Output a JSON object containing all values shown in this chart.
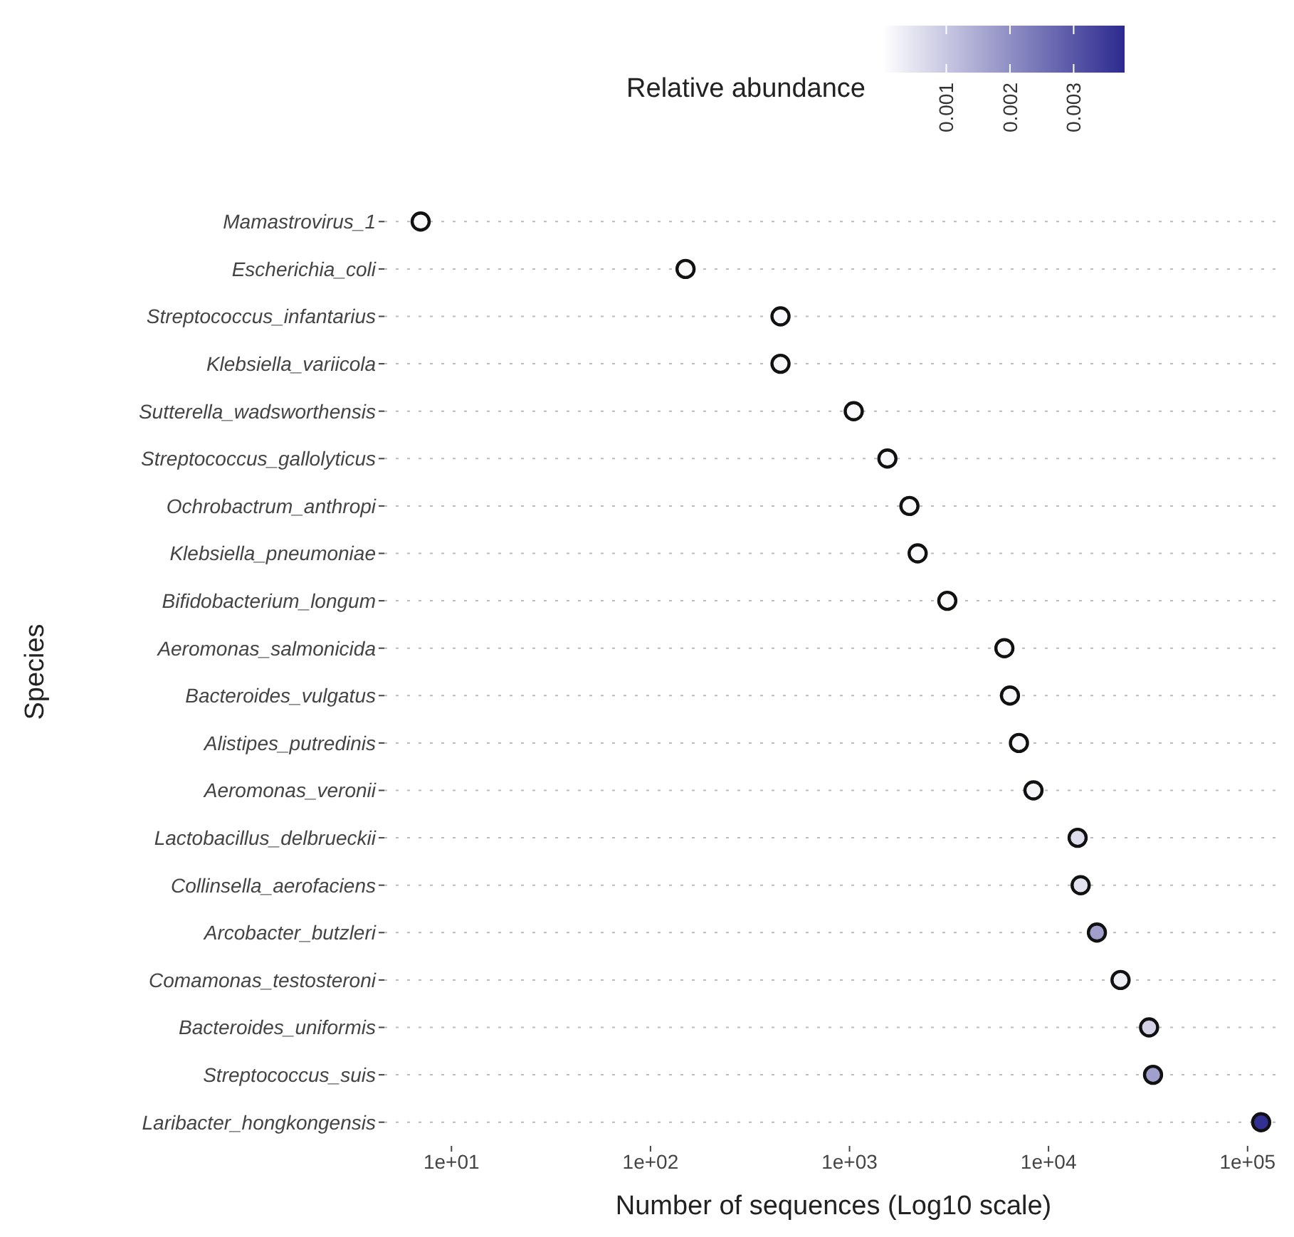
{
  "chart_data": {
    "type": "scatter",
    "xlabel": "Number of sequences (Log10 scale)",
    "ylabel": "Species",
    "clabel": "Relative abundance",
    "categories": [
      "Mamastrovirus_1",
      "Escherichia_coli",
      "Streptococcus_infantarius",
      "Klebsiella_variicola",
      "Sutterella_wadsworthensis",
      "Streptococcus_gallolyticus",
      "Ochrobactrum_anthropi",
      "Klebsiella_pneumoniae",
      "Bifidobacterium_longum",
      "Aeromonas_salmonicida",
      "Bacteroides_vulgatus",
      "Alistipes_putredinis",
      "Aeromonas_veronii",
      "Lactobacillus_delbrueckii",
      "Collinsella_aerofaciens",
      "Arcobacter_butzleri",
      "Comamonas_testosteroni",
      "Bacteroides_uniformis",
      "Streptococcus_suis",
      "Laribacter_hongkongensis"
    ],
    "series": [
      {
        "values": [
          7,
          150,
          450,
          450,
          1050,
          1550,
          2000,
          2200,
          3100,
          6000,
          6400,
          7100,
          8400,
          14000,
          14500,
          17500,
          23000,
          32000,
          33500,
          117000
        ],
        "cvalues": [
          0.0001,
          0.0001,
          0.0001,
          0.0001,
          0.0001,
          0.0001,
          0.0001,
          0.0001,
          0.0001,
          0.0001,
          0.0001,
          0.0001,
          0.0002,
          0.0006,
          0.0005,
          0.0017,
          0.0003,
          0.0008,
          0.0017,
          0.0037
        ]
      }
    ],
    "orientation": "horizontal",
    "log": "x",
    "xlim": [
      4.6,
      150000
    ],
    "xticks": [
      {
        "value": 10,
        "label": "1e+01"
      },
      {
        "value": 100,
        "label": "1e+02"
      },
      {
        "value": 1000,
        "label": "1e+03"
      },
      {
        "value": 10000,
        "label": "1e+04"
      },
      {
        "value": 100000,
        "label": "1e+05"
      }
    ],
    "clim": [
      0,
      0.0038
    ],
    "cticks": [
      0.001,
      0.002,
      0.003
    ],
    "grid": "y",
    "marker": "circle"
  }
}
